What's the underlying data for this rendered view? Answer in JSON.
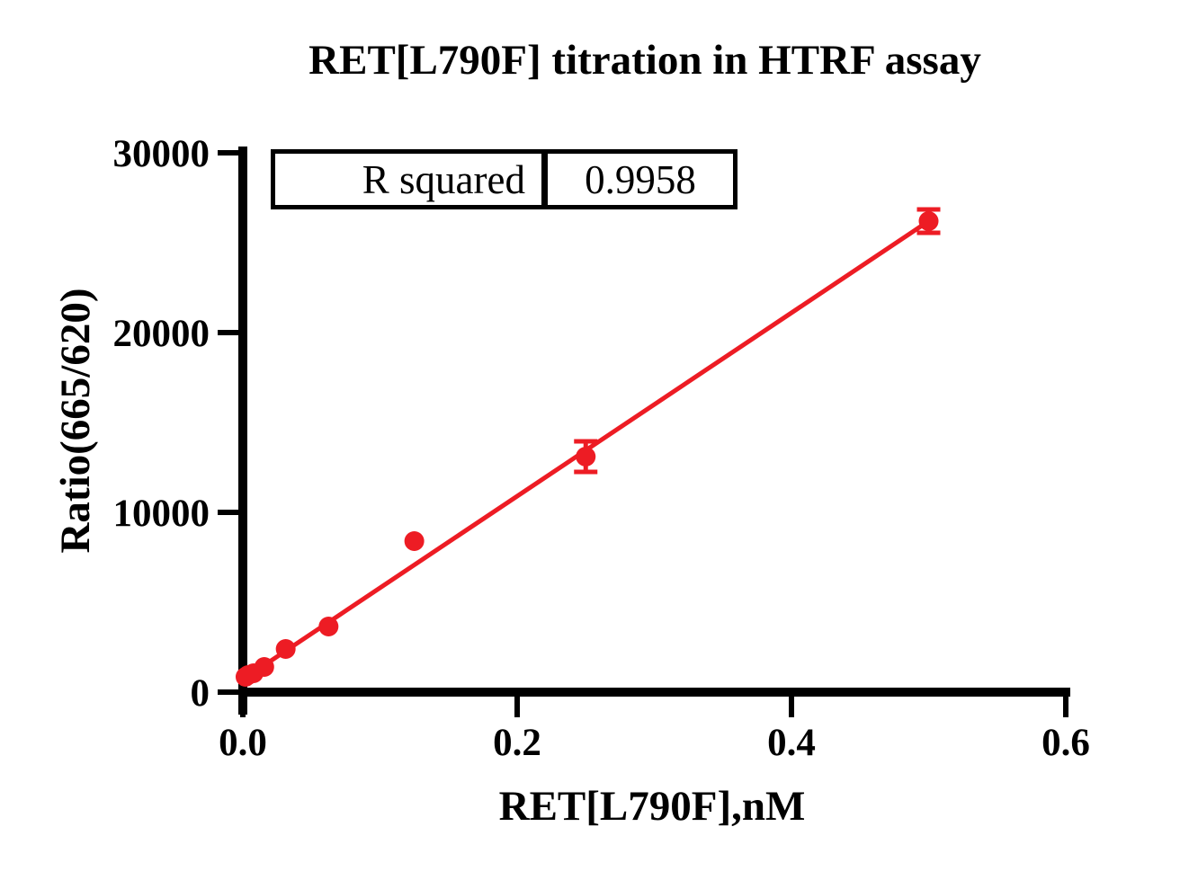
{
  "chart_data": {
    "type": "scatter",
    "title": "RET[L790F] titration in HTRF assay",
    "xlabel": "RET[L790F],nM",
    "ylabel": "Ratio(665/620)",
    "xlim": [
      0,
      0.6
    ],
    "ylim": [
      0,
      30000
    ],
    "grid": false,
    "xticks": [
      0.0,
      0.2,
      0.4,
      0.6
    ],
    "xtick_labels": [
      "0.0",
      "0.2",
      "0.4",
      "0.6"
    ],
    "yticks": [
      0,
      10000,
      20000,
      30000
    ],
    "ytick_labels": [
      "0",
      "10000",
      "20000",
      "30000"
    ],
    "axis_color": "#000000",
    "background_color": "#ffffff",
    "series": [
      {
        "name": "RET[L790F]",
        "marker": "circle",
        "color": "#ed1c24",
        "points": [
          {
            "x": 0.00195,
            "y": 850
          },
          {
            "x": 0.0039,
            "y": 950
          },
          {
            "x": 0.0078,
            "y": 1050
          },
          {
            "x": 0.0156,
            "y": 1400
          },
          {
            "x": 0.03125,
            "y": 2400
          },
          {
            "x": 0.0625,
            "y": 3650
          },
          {
            "x": 0.125,
            "y": 8400
          },
          {
            "x": 0.25,
            "y": 13100,
            "yerr": 850
          },
          {
            "x": 0.5,
            "y": 26200,
            "yerr": 650
          }
        ]
      }
    ],
    "fit_line": {
      "type": "linear",
      "intercept": 700,
      "slope": 51000,
      "x_start": 0.002,
      "x_end": 0.5,
      "color": "#ed1c24"
    },
    "stats_table": {
      "label": "R squared",
      "value": "0.9958"
    }
  }
}
